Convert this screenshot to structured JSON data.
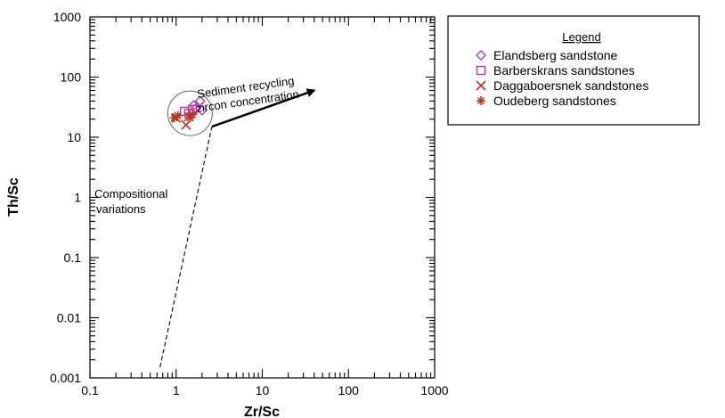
{
  "chart_data": {
    "type": "scatter",
    "xlabel": "Zr/Sc",
    "ylabel": "Th/Sc",
    "xscale": "log",
    "yscale": "log",
    "xlim": [
      0.1,
      1000
    ],
    "ylim": [
      0.001,
      1000
    ],
    "x_tick_labels": [
      "0.1",
      "1",
      "10",
      "100",
      "1000"
    ],
    "y_tick_labels": [
      "0.001",
      "0.01",
      "0.1",
      "1",
      "10",
      "100",
      "1000"
    ],
    "grid": false,
    "legend_position": "right, outside plot",
    "legend": {
      "title": "Legend",
      "entries": [
        "Elandsberg sandstone",
        "Barberskrans sandstones",
        "Daggaboersnek sandstones",
        "Oudeberg sandstones"
      ]
    },
    "series": [
      {
        "name": "Elandsberg sandstone",
        "marker": "diamond",
        "color": "#b03fc4",
        "points": [
          [
            1.5,
            25
          ],
          [
            1.7,
            30
          ],
          [
            1.9,
            40
          ],
          [
            2.0,
            28
          ],
          [
            1.6,
            34
          ]
        ]
      },
      {
        "name": "Barberskrans sandstones",
        "marker": "square",
        "color": "#c0398a",
        "points": [
          [
            1.25,
            27
          ],
          [
            1.4,
            25
          ],
          [
            1.55,
            29
          ]
        ]
      },
      {
        "name": "Daggaboersnek sandstones",
        "marker": "x",
        "color": "#cc2a2a",
        "points": [
          [
            1.3,
            16
          ],
          [
            1.0,
            21
          ],
          [
            1.4,
            22
          ]
        ]
      },
      {
        "name": "Oudeberg sandstones",
        "marker": "asterisk",
        "color": "#b33a1a",
        "points": [
          [
            0.95,
            21
          ],
          [
            1.05,
            23
          ],
          [
            1.45,
            21
          ],
          [
            1.55,
            24
          ]
        ]
      }
    ],
    "annotations": {
      "recycling_line1": "Sediment recycling",
      "recycling_line2": "zircon concentration",
      "compositional_line1": "Compositional",
      "compositional_line2": "variations"
    },
    "trend_lines": {
      "compositional_dashed": [
        [
          0.65,
          0.0015
        ],
        [
          2.6,
          15
        ]
      ],
      "recycling_arrow": [
        [
          2.6,
          15
        ],
        [
          40,
          60
        ]
      ]
    },
    "cluster_circle": {
      "center": [
        1.45,
        25
      ]
    }
  }
}
